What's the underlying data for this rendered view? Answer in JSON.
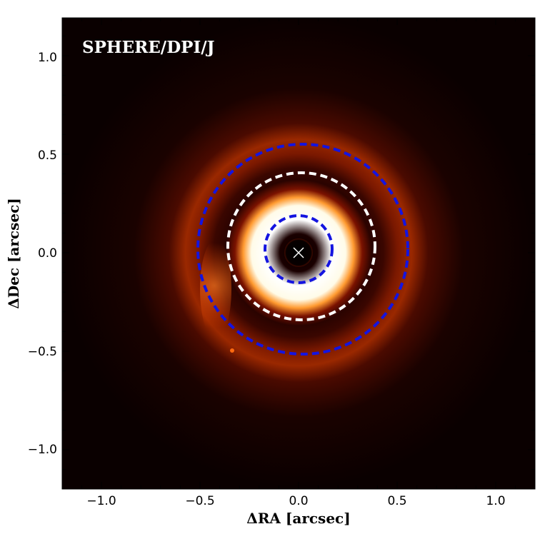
{
  "title": "SPHERE/DPI/J",
  "x_axis": {
    "label": "ΔRA [arcsec]",
    "ticks": [
      "−1.0",
      "−0.5",
      "0.0",
      "0.5",
      "1.0"
    ],
    "range": [
      -1.2,
      1.2
    ]
  },
  "y_axis": {
    "label": "ΔDec [arcsec]",
    "ticks": [
      "1.0",
      "0.5",
      "0.0",
      "−0.5",
      "−1.0"
    ],
    "range": [
      -1.2,
      1.2
    ]
  },
  "image": {
    "colormap": "black-red-orange-white (gist_heat-like)",
    "star_marker": "white x at center"
  },
  "circles": [
    {
      "color": "#1414e0",
      "style": "dashed",
      "radius_arcsec": 0.17
    },
    {
      "color": "#ffffff",
      "style": "dashed",
      "radius_arcsec": 0.37
    },
    {
      "color": "#1414e0",
      "style": "dashed",
      "radius_arcsec": 0.53
    }
  ],
  "colors": {
    "background_image": "#0a0000",
    "inner_ring": "#ffffff",
    "outer_glow": "#b83000"
  }
}
